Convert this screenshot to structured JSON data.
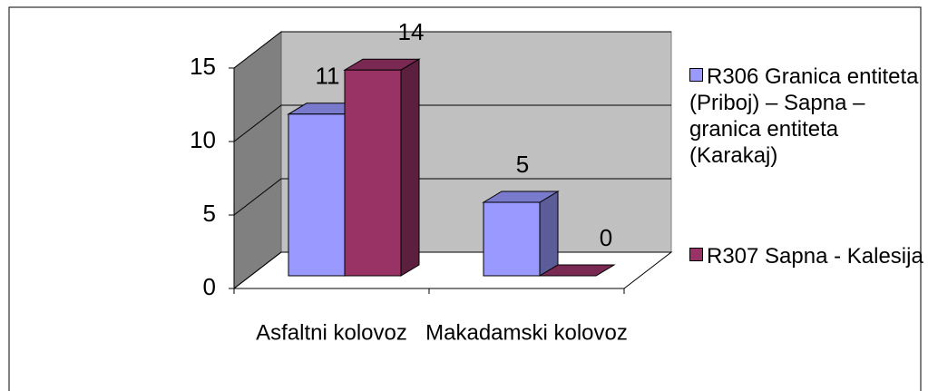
{
  "chart_data": {
    "type": "bar3d",
    "categories": [
      "Asfaltni kolovoz",
      "Makadamski kolovoz"
    ],
    "series": [
      {
        "name": "R306  Granica entiteta (Priboj) – Sapna – granica entiteta (Karakaj)",
        "color": "#9999ff",
        "values": [
          11,
          5
        ]
      },
      {
        "name": "R307   Sapna - Kalesija",
        "color": "#993366",
        "values": [
          14,
          0
        ]
      }
    ],
    "ylim": [
      0,
      15
    ],
    "yticks": [
      0,
      5,
      10,
      15
    ],
    "grid": true
  }
}
